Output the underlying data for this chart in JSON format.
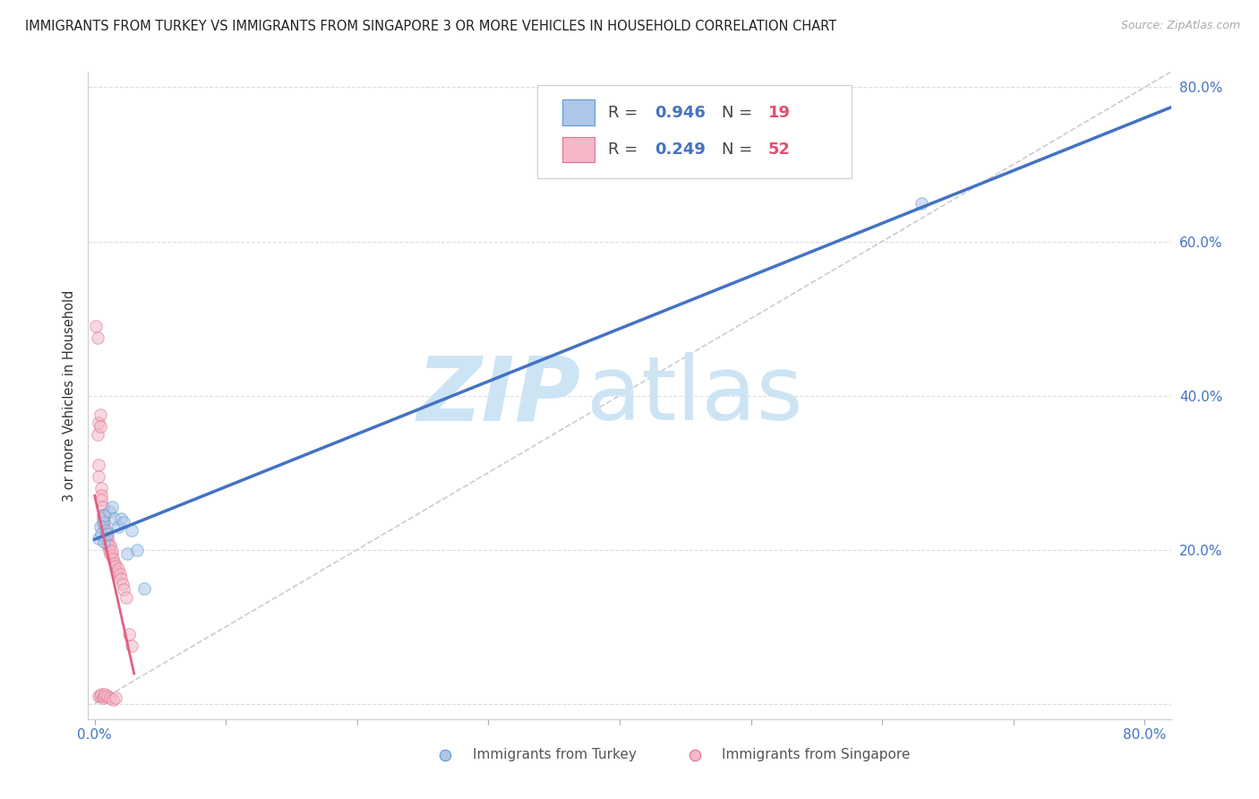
{
  "title": "IMMIGRANTS FROM TURKEY VS IMMIGRANTS FROM SINGAPORE 3 OR MORE VEHICLES IN HOUSEHOLD CORRELATION CHART",
  "source": "Source: ZipAtlas.com",
  "tick_color": "#4472c4",
  "ylabel": "3 or more Vehicles in Household",
  "xlim": [
    -0.005,
    0.82
  ],
  "ylim": [
    -0.02,
    0.82
  ],
  "xtick_positions": [
    0.0,
    0.1,
    0.2,
    0.3,
    0.4,
    0.5,
    0.6,
    0.7,
    0.8
  ],
  "xtick_labels": [
    "0.0%",
    "",
    "",
    "",
    "",
    "",
    "",
    "",
    "80.0%"
  ],
  "ytick_positions": [
    0.0,
    0.2,
    0.4,
    0.6,
    0.8
  ],
  "ytick_labels": [
    "",
    "20.0%",
    "40.0%",
    "60.0%",
    "80.0%"
  ],
  "background_color": "#ffffff",
  "grid_color": "#dddddd",
  "watermark_zip": "ZIP",
  "watermark_atlas": "atlas",
  "watermark_color": "#cde4f5",
  "turkey_color": "#aec6e8",
  "turkey_edge_color": "#5b9bd5",
  "singapore_color": "#f4b8c8",
  "singapore_edge_color": "#e07090",
  "turkey_line_color": "#4472c4",
  "singapore_line_color": "#e06080",
  "turkey_R": 0.946,
  "turkey_N": 19,
  "singapore_R": 0.249,
  "singapore_N": 52,
  "legend_R_color": "#4472c4",
  "legend_N_color": "#e05070",
  "turkey_scatter_x": [
    0.003,
    0.004,
    0.005,
    0.006,
    0.007,
    0.008,
    0.009,
    0.01,
    0.011,
    0.013,
    0.015,
    0.018,
    0.02,
    0.022,
    0.025,
    0.028,
    0.032,
    0.038,
    0.63
  ],
  "turkey_scatter_y": [
    0.215,
    0.23,
    0.22,
    0.235,
    0.21,
    0.245,
    0.225,
    0.22,
    0.25,
    0.255,
    0.24,
    0.23,
    0.24,
    0.235,
    0.195,
    0.225,
    0.2,
    0.15,
    0.65
  ],
  "singapore_scatter_x": [
    0.001,
    0.002,
    0.002,
    0.003,
    0.003,
    0.003,
    0.004,
    0.004,
    0.005,
    0.005,
    0.005,
    0.006,
    0.006,
    0.006,
    0.007,
    0.007,
    0.007,
    0.008,
    0.008,
    0.009,
    0.009,
    0.01,
    0.01,
    0.01,
    0.011,
    0.011,
    0.012,
    0.012,
    0.013,
    0.013,
    0.014,
    0.015,
    0.016,
    0.017,
    0.018,
    0.019,
    0.02,
    0.021,
    0.022,
    0.024,
    0.026,
    0.028,
    0.003,
    0.004,
    0.005,
    0.006,
    0.007,
    0.008,
    0.01,
    0.012,
    0.014,
    0.016
  ],
  "singapore_scatter_y": [
    0.49,
    0.475,
    0.35,
    0.365,
    0.31,
    0.295,
    0.36,
    0.375,
    0.28,
    0.27,
    0.265,
    0.255,
    0.245,
    0.24,
    0.245,
    0.235,
    0.228,
    0.225,
    0.215,
    0.22,
    0.21,
    0.21,
    0.215,
    0.205,
    0.198,
    0.205,
    0.195,
    0.205,
    0.192,
    0.198,
    0.188,
    0.182,
    0.178,
    0.172,
    0.175,
    0.168,
    0.162,
    0.155,
    0.148,
    0.138,
    0.09,
    0.075,
    0.01,
    0.01,
    0.012,
    0.008,
    0.01,
    0.012,
    0.01,
    0.008,
    0.005,
    0.008
  ],
  "marker_size": 95,
  "marker_alpha": 0.55,
  "diagonal_color": "#cccccc",
  "diagonal_style": "--"
}
